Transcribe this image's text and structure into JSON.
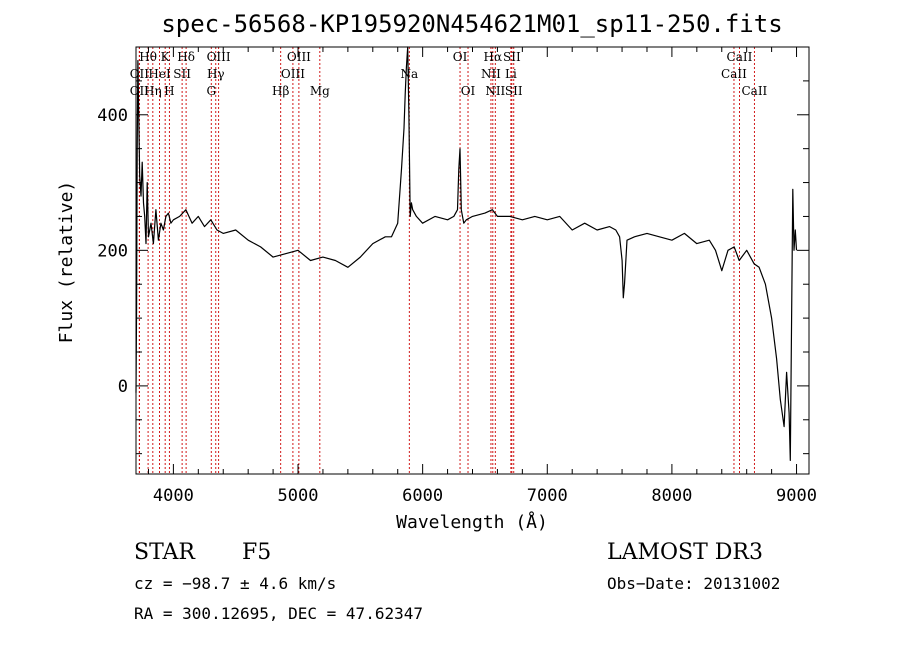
{
  "chart_data": {
    "type": "line",
    "title": "spec-56568-KP195920N454621M01_sp11-250.fits",
    "xlabel": "Wavelength (Å)",
    "ylabel": "Flux (relative)",
    "xlim": [
      3700,
      9100
    ],
    "ylim": [
      -130,
      500
    ],
    "xticks": [
      4000,
      5000,
      6000,
      7000,
      8000,
      9000
    ],
    "yticks": [
      0,
      200,
      400
    ],
    "grid": false,
    "line_color": "#000000",
    "marker_color": "#cc0000",
    "series": [
      {
        "x": [
          3700,
          3705,
          3710,
          3715,
          3720,
          3730,
          3740,
          3750,
          3760,
          3770,
          3780,
          3790,
          3800,
          3820,
          3840,
          3860,
          3880,
          3900,
          3920,
          3940,
          3960,
          3980,
          4000,
          4050,
          4100,
          4150,
          4200,
          4250,
          4300,
          4350,
          4400,
          4500,
          4600,
          4700,
          4800,
          4900,
          5000,
          5100,
          5200,
          5300,
          5400,
          5500,
          5600,
          5700,
          5750,
          5800,
          5830,
          5850,
          5860,
          5870,
          5880,
          5890,
          5900,
          5910,
          5920,
          5950,
          6000,
          6100,
          6200,
          6250,
          6280,
          6290,
          6300,
          6310,
          6320,
          6330,
          6350,
          6400,
          6500,
          6560,
          6600,
          6700,
          6800,
          6900,
          7000,
          7100,
          7200,
          7300,
          7400,
          7500,
          7550,
          7580,
          7600,
          7610,
          7620,
          7640,
          7700,
          7800,
          7900,
          8000,
          8100,
          8200,
          8300,
          8350,
          8400,
          8450,
          8500,
          8540,
          8600,
          8660,
          8700,
          8750,
          8800,
          8840,
          8870,
          8900,
          8920,
          8940,
          8950,
          8960,
          8970,
          8980,
          8990,
          9000
        ],
        "y": [
          -10,
          120,
          350,
          480,
          420,
          310,
          280,
          330,
          270,
          250,
          210,
          300,
          220,
          240,
          210,
          260,
          215,
          240,
          230,
          250,
          255,
          240,
          245,
          250,
          260,
          240,
          250,
          235,
          245,
          230,
          225,
          230,
          215,
          205,
          190,
          195,
          200,
          185,
          190,
          185,
          175,
          190,
          210,
          220,
          220,
          240,
          320,
          380,
          430,
          470,
          500,
          400,
          250,
          270,
          260,
          250,
          240,
          250,
          245,
          250,
          260,
          320,
          350,
          260,
          250,
          240,
          245,
          250,
          255,
          260,
          250,
          250,
          245,
          250,
          245,
          250,
          230,
          240,
          230,
          235,
          230,
          220,
          185,
          130,
          150,
          215,
          220,
          225,
          220,
          215,
          225,
          210,
          215,
          200,
          170,
          200,
          205,
          185,
          200,
          180,
          175,
          150,
          100,
          40,
          -20,
          -60,
          20,
          -40,
          -110,
          100,
          290,
          200,
          230,
          200
        ]
      }
    ],
    "spectral_lines": [
      {
        "label": "OII",
        "x": 3727,
        "row": 3
      },
      {
        "label": "OII",
        "x": 3727,
        "row": 2
      },
      {
        "label": "Hθ",
        "x": 3797,
        "row": 1
      },
      {
        "label": "Hη",
        "x": 3835,
        "row": 3
      },
      {
        "label": "HeI",
        "x": 3889,
        "row": 2
      },
      {
        "label": "K",
        "x": 3934,
        "row": 1
      },
      {
        "label": "H",
        "x": 3968,
        "row": 3
      },
      {
        "label": "SII",
        "x": 4070,
        "row": 2
      },
      {
        "label": "Hδ",
        "x": 4102,
        "row": 1
      },
      {
        "label": "G",
        "x": 4304,
        "row": 3
      },
      {
        "label": "Hγ",
        "x": 4340,
        "row": 2
      },
      {
        "label": "OIII",
        "x": 4363,
        "row": 1
      },
      {
        "label": "Hβ",
        "x": 4861,
        "row": 3
      },
      {
        "label": "OIII",
        "x": 4959,
        "row": 2
      },
      {
        "label": "OIII",
        "x": 5007,
        "row": 1
      },
      {
        "label": "Mg",
        "x": 5175,
        "row": 3
      },
      {
        "label": "Na",
        "x": 5893,
        "row": 2
      },
      {
        "label": "OI",
        "x": 6300,
        "row": 1
      },
      {
        "label": "OI",
        "x": 6364,
        "row": 3
      },
      {
        "label": "NII",
        "x": 6548,
        "row": 2
      },
      {
        "label": "Hα",
        "x": 6563,
        "row": 1
      },
      {
        "label": "NII",
        "x": 6583,
        "row": 3
      },
      {
        "label": "Li",
        "x": 6708,
        "row": 2
      },
      {
        "label": "SII",
        "x": 6716,
        "row": 1
      },
      {
        "label": "SII",
        "x": 6731,
        "row": 3
      },
      {
        "label": "CaII",
        "x": 8498,
        "row": 2
      },
      {
        "label": "CaII",
        "x": 8542,
        "row": 1
      },
      {
        "label": "CaII",
        "x": 8662,
        "row": 3
      }
    ]
  },
  "info": {
    "class": "STAR",
    "subclass": "F5",
    "survey": "LAMOST DR3",
    "cz": "cz = −98.7 ± 4.6 km/s",
    "obs_date": "Obs−Date: 20131002",
    "radec": "RA = 300.12695, DEC =  47.62347"
  }
}
